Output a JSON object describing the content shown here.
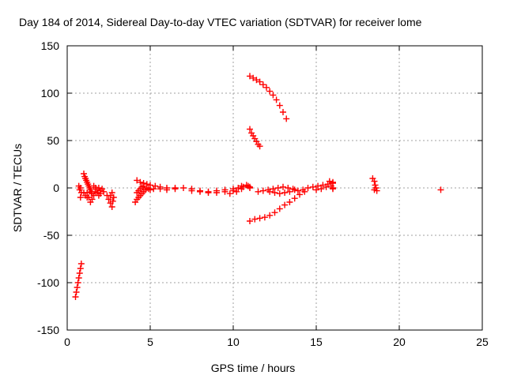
{
  "chart_data": {
    "type": "scatter",
    "title": "Day 184 of 2014, Sidereal Day-to-day VTEC variation (SDTVAR) for receiver lome",
    "xlabel": "GPS time / hours",
    "ylabel": "SDTVAR / TECUs",
    "xlim": [
      0,
      25
    ],
    "ylim": [
      -150,
      150
    ],
    "xticks": [
      0,
      5,
      10,
      15,
      20,
      25
    ],
    "yticks": [
      -150,
      -100,
      -50,
      0,
      50,
      100,
      150
    ],
    "grid": true,
    "marker": "+",
    "color": "#ff0000",
    "points": [
      [
        0.5,
        -115
      ],
      [
        0.55,
        -110
      ],
      [
        0.6,
        -105
      ],
      [
        0.65,
        -100
      ],
      [
        0.7,
        -95
      ],
      [
        0.75,
        -90
      ],
      [
        0.8,
        -85
      ],
      [
        0.85,
        -80
      ],
      [
        0.7,
        2
      ],
      [
        0.75,
        -2
      ],
      [
        0.8,
        0
      ],
      [
        0.85,
        -5
      ],
      [
        0.8,
        -10
      ],
      [
        1.0,
        15
      ],
      [
        1.05,
        12
      ],
      [
        1.1,
        10
      ],
      [
        1.15,
        8
      ],
      [
        1.2,
        6
      ],
      [
        1.25,
        4
      ],
      [
        1.3,
        2
      ],
      [
        1.35,
        0
      ],
      [
        1.4,
        -2
      ],
      [
        1.45,
        -4
      ],
      [
        1.5,
        -6
      ],
      [
        1.2,
        -5
      ],
      [
        1.3,
        -10
      ],
      [
        1.4,
        -15
      ],
      [
        1.5,
        -12
      ],
      [
        1.6,
        -8
      ],
      [
        1.7,
        -4
      ],
      [
        1.8,
        -2
      ],
      [
        1.9,
        0
      ],
      [
        2.0,
        -3
      ],
      [
        2.1,
        -1
      ],
      [
        1.6,
        2
      ],
      [
        1.7,
        0
      ],
      [
        1.8,
        -5
      ],
      [
        1.9,
        -8
      ],
      [
        2.0,
        -6
      ],
      [
        2.2,
        -4
      ],
      [
        1.0,
        -5
      ],
      [
        1.1,
        -8
      ],
      [
        1.2,
        -10
      ],
      [
        2.4,
        -8
      ],
      [
        2.5,
        -12
      ],
      [
        2.6,
        -16
      ],
      [
        2.7,
        -20
      ],
      [
        2.75,
        -14
      ],
      [
        2.8,
        -10
      ],
      [
        2.6,
        -8
      ],
      [
        2.7,
        -5
      ],
      [
        4.1,
        -15
      ],
      [
        4.2,
        -12
      ],
      [
        4.3,
        -10
      ],
      [
        4.4,
        -8
      ],
      [
        4.5,
        -6
      ],
      [
        4.6,
        -4
      ],
      [
        4.7,
        -2
      ],
      [
        4.8,
        0
      ],
      [
        4.9,
        -1
      ],
      [
        5.0,
        -2
      ],
      [
        4.2,
        -5
      ],
      [
        4.3,
        -3
      ],
      [
        4.4,
        -1
      ],
      [
        4.5,
        1
      ],
      [
        4.6,
        2
      ],
      [
        4.2,
        8
      ],
      [
        4.4,
        6
      ],
      [
        4.6,
        5
      ],
      [
        4.8,
        4
      ],
      [
        5.0,
        3
      ],
      [
        5.3,
        2
      ],
      [
        5.6,
        1
      ],
      [
        6.0,
        0
      ],
      [
        6.5,
        0
      ],
      [
        5.2,
        -1
      ],
      [
        5.6,
        -1
      ],
      [
        6.0,
        -2
      ],
      [
        6.5,
        -1
      ],
      [
        7.0,
        0
      ],
      [
        7.5,
        -1
      ],
      [
        8.0,
        -3
      ],
      [
        8.5,
        -4
      ],
      [
        9.0,
        -3
      ],
      [
        9.5,
        -2
      ],
      [
        10.0,
        -1
      ],
      [
        10.3,
        0
      ],
      [
        10.6,
        1
      ],
      [
        10.9,
        2
      ],
      [
        7.5,
        -3
      ],
      [
        8.0,
        -4
      ],
      [
        8.5,
        -5
      ],
      [
        9.0,
        -5
      ],
      [
        9.5,
        -4
      ],
      [
        10.0,
        -3
      ],
      [
        10.5,
        -1
      ],
      [
        11.0,
        0
      ],
      [
        9.8,
        -6
      ],
      [
        10.2,
        -4
      ],
      [
        10.5,
        2
      ],
      [
        10.8,
        3
      ],
      [
        11.0,
        1
      ],
      [
        11.0,
        118
      ],
      [
        11.2,
        116
      ],
      [
        11.4,
        114
      ],
      [
        11.6,
        112
      ],
      [
        11.8,
        109
      ],
      [
        12.0,
        106
      ],
      [
        12.2,
        102
      ],
      [
        12.4,
        98
      ],
      [
        12.6,
        93
      ],
      [
        12.8,
        87
      ],
      [
        13.0,
        80
      ],
      [
        13.2,
        73
      ],
      [
        11.0,
        62
      ],
      [
        11.1,
        58
      ],
      [
        11.2,
        55
      ],
      [
        11.3,
        52
      ],
      [
        11.4,
        49
      ],
      [
        11.5,
        46
      ],
      [
        11.6,
        44
      ],
      [
        11.0,
        -35
      ],
      [
        11.3,
        -33
      ],
      [
        11.6,
        -32
      ],
      [
        11.9,
        -31
      ],
      [
        12.2,
        -29
      ],
      [
        12.5,
        -26
      ],
      [
        12.8,
        -22
      ],
      [
        13.1,
        -18
      ],
      [
        13.4,
        -15
      ],
      [
        13.7,
        -11
      ],
      [
        14.0,
        -7
      ],
      [
        14.3,
        -4
      ],
      [
        11.5,
        -4
      ],
      [
        11.8,
        -3
      ],
      [
        12.1,
        -2
      ],
      [
        12.4,
        -1
      ],
      [
        12.7,
        0
      ],
      [
        13.0,
        1
      ],
      [
        13.3,
        0
      ],
      [
        13.6,
        -1
      ],
      [
        13.9,
        -3
      ],
      [
        12.2,
        -4
      ],
      [
        12.5,
        -5
      ],
      [
        12.8,
        -6
      ],
      [
        13.1,
        -5
      ],
      [
        13.4,
        -4
      ],
      [
        13.7,
        -2
      ],
      [
        14.2,
        -2
      ],
      [
        14.5,
        0
      ],
      [
        14.8,
        1
      ],
      [
        15.1,
        2
      ],
      [
        15.4,
        3
      ],
      [
        15.7,
        4
      ],
      [
        16.0,
        5
      ],
      [
        15.0,
        -2
      ],
      [
        15.3,
        -1
      ],
      [
        15.6,
        1
      ],
      [
        15.9,
        2
      ],
      [
        16.0,
        0
      ],
      [
        16.0,
        -1
      ],
      [
        15.8,
        7
      ],
      [
        16.0,
        6
      ],
      [
        18.4,
        10
      ],
      [
        18.5,
        7
      ],
      [
        18.55,
        3
      ],
      [
        18.6,
        0
      ],
      [
        18.65,
        -3
      ],
      [
        18.5,
        -2
      ],
      [
        22.5,
        -2
      ]
    ]
  }
}
